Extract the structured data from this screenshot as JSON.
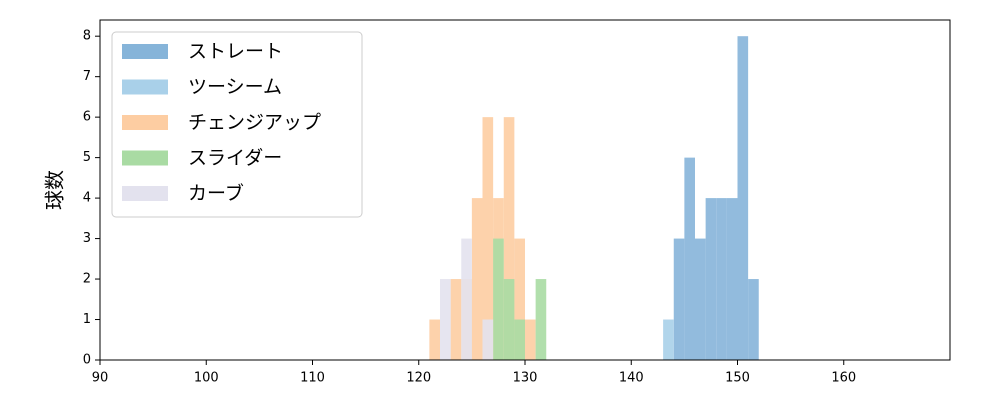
{
  "chart_data": {
    "type": "histogram",
    "ylabel": "球数",
    "xlim": [
      90,
      170
    ],
    "xticks": [
      90,
      100,
      110,
      120,
      130,
      140,
      150,
      160
    ],
    "ylim": [
      0,
      8.4
    ],
    "yticks": [
      0,
      1,
      2,
      3,
      4,
      5,
      6,
      7,
      8
    ],
    "legend": "upper left",
    "series": [
      {
        "name": "ストレート",
        "color": "#86b4d9",
        "bins": [
          144,
          145,
          146,
          147,
          148,
          149,
          150,
          151,
          152
        ],
        "values": [
          3,
          5,
          3,
          4,
          4,
          4,
          8,
          2
        ]
      },
      {
        "name": "ツーシーム",
        "color": "#a9d0e9",
        "bins": [
          143,
          144
        ],
        "values": [
          1
        ]
      },
      {
        "name": "チェンジアップ",
        "color": "#fdcda2",
        "bins": [
          121,
          122,
          123,
          124,
          125,
          126,
          127,
          128,
          129,
          130,
          131
        ],
        "values": [
          1,
          0,
          2,
          2,
          4,
          6,
          4,
          6,
          3,
          1
        ]
      },
      {
        "name": "スライダー",
        "color": "#a9dba3",
        "bins": [
          127,
          128,
          129,
          130,
          131,
          132
        ],
        "values": [
          3,
          2,
          1,
          0,
          2
        ]
      },
      {
        "name": "カーブ",
        "color": "#e3e2ee",
        "bins": [
          122,
          123,
          124,
          125,
          126,
          127
        ],
        "values": [
          2,
          0,
          3,
          0,
          1
        ]
      }
    ]
  }
}
